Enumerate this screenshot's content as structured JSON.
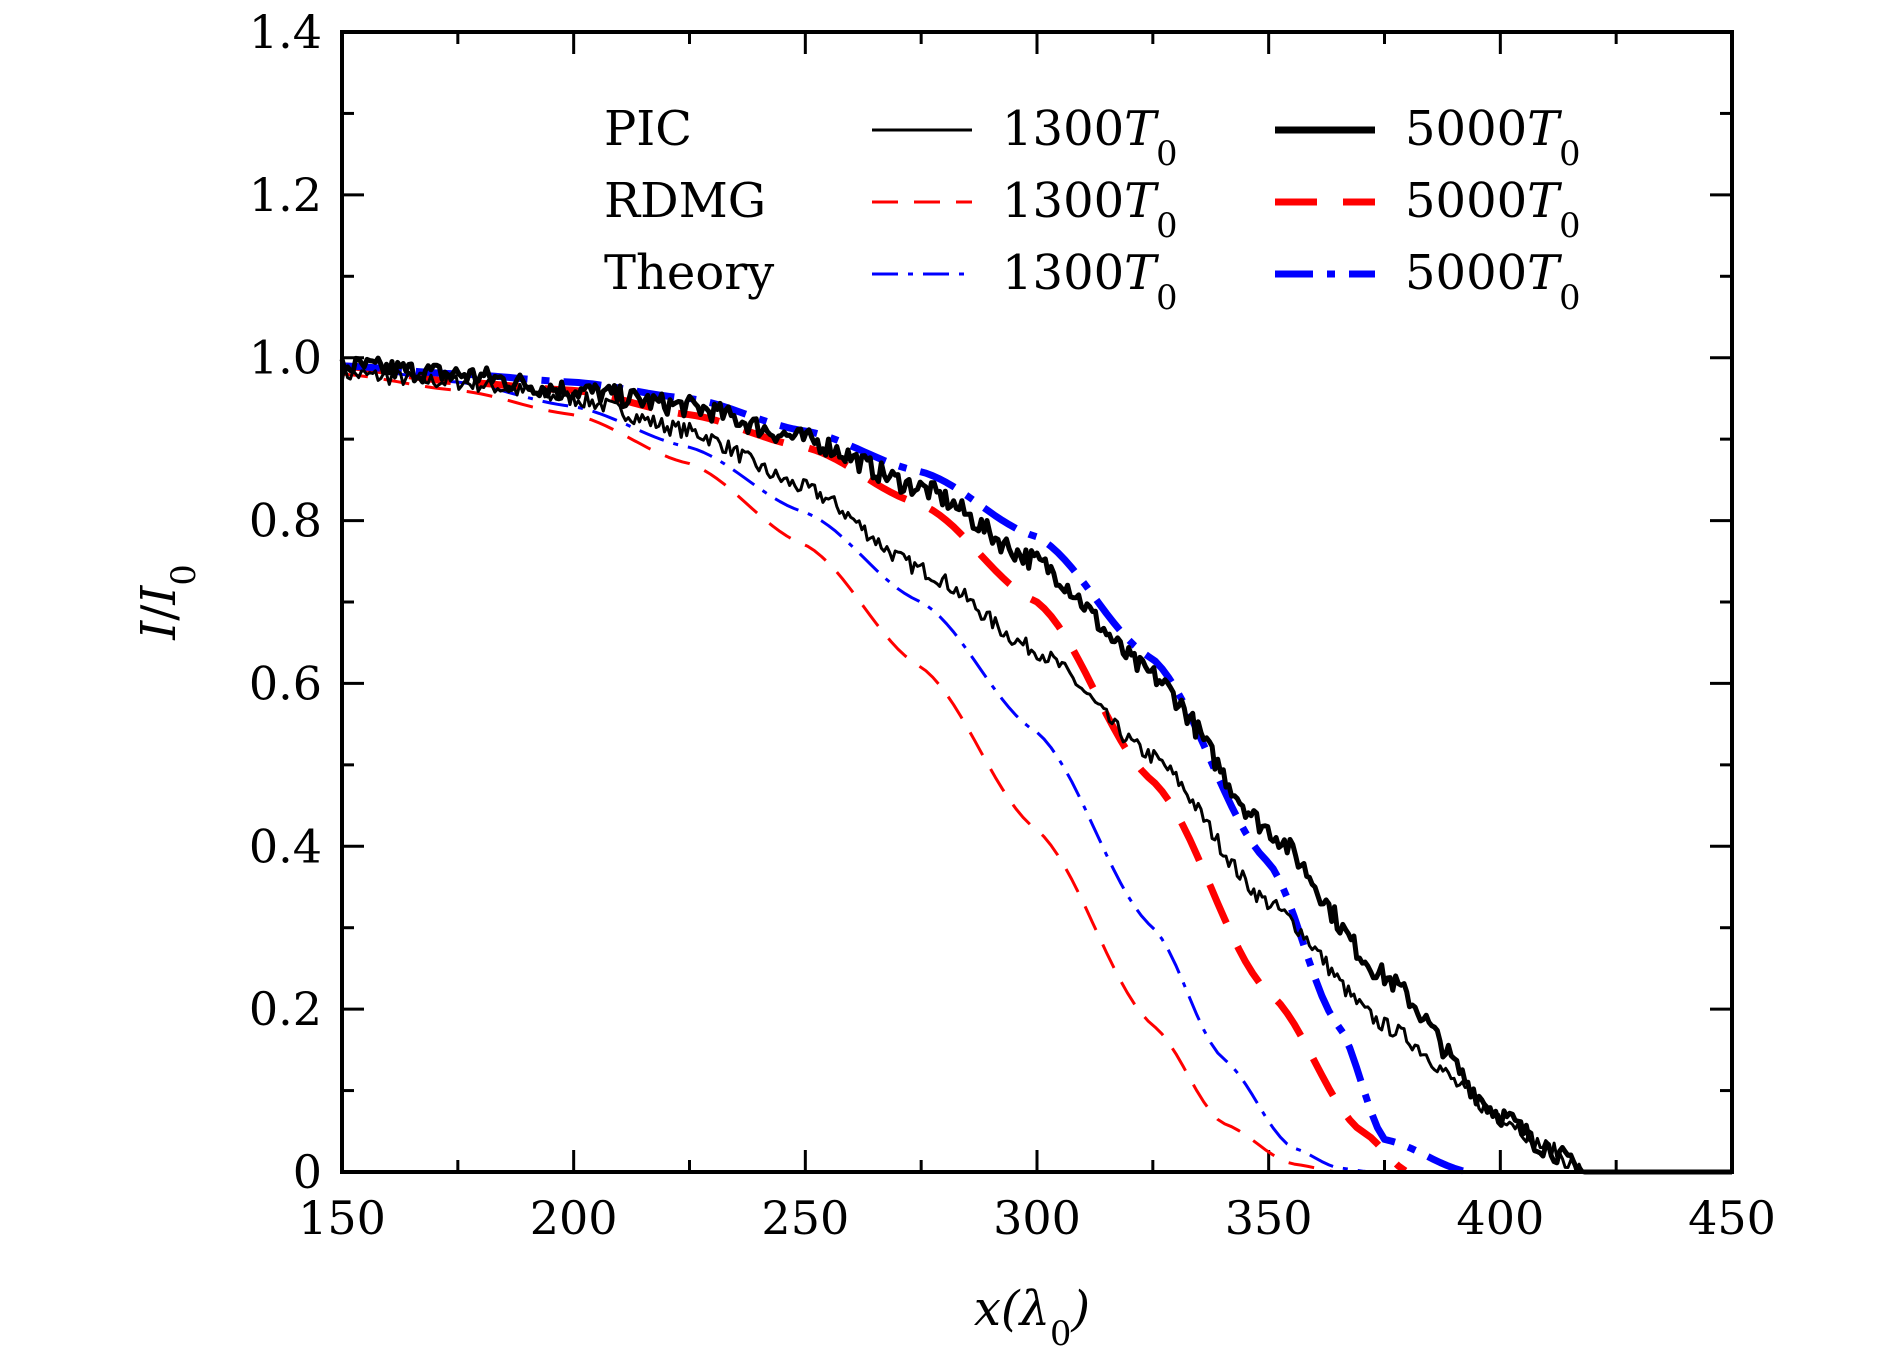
{
  "chart_data": {
    "type": "line",
    "title": "",
    "xlabel": "x(λ0)",
    "ylabel": "I/I0",
    "xlim": [
      150,
      450
    ],
    "ylim": [
      0,
      1.4
    ],
    "x_ticks": [
      "150",
      "200",
      "250",
      "300",
      "350",
      "400",
      "450"
    ],
    "y_ticks": [
      "0",
      "0.2",
      "0.4",
      "0.6",
      "0.8",
      "1.0",
      "1.2",
      "1.4"
    ],
    "legend": {
      "placement": "top",
      "row_labels": [
        "PIC",
        "RDMG",
        "Theory"
      ],
      "column_labels": [
        "1300T0",
        "5000T0"
      ]
    },
    "series": [
      {
        "name": "PIC 1300T0",
        "color": "#000000",
        "style": "solid",
        "width": "thin",
        "noisy": true,
        "x": [
          150,
          175,
          200,
          225,
          250,
          275,
          300,
          325,
          350,
          375,
          400,
          410,
          418,
          450
        ],
        "y": [
          0.98,
          0.97,
          0.95,
          0.91,
          0.84,
          0.74,
          0.64,
          0.51,
          0.33,
          0.18,
          0.07,
          0.03,
          0.0,
          0.0
        ]
      },
      {
        "name": "PIC 5000T0",
        "color": "#000000",
        "style": "solid",
        "width": "thick",
        "noisy": true,
        "x": [
          150,
          175,
          200,
          225,
          250,
          275,
          300,
          325,
          350,
          375,
          400,
          410,
          418,
          450
        ],
        "y": [
          0.99,
          0.98,
          0.96,
          0.94,
          0.9,
          0.84,
          0.75,
          0.61,
          0.42,
          0.24,
          0.07,
          0.03,
          0.0,
          0.0
        ]
      },
      {
        "name": "RDMG 1300T0",
        "color": "#ff0000",
        "style": "dashed",
        "width": "thin",
        "noisy": false,
        "x": [
          150,
          175,
          200,
          225,
          250,
          275,
          300,
          325,
          340,
          355,
          365
        ],
        "y": [
          0.98,
          0.96,
          0.93,
          0.87,
          0.77,
          0.62,
          0.42,
          0.18,
          0.06,
          0.01,
          0.0
        ]
      },
      {
        "name": "RDMG 5000T0",
        "color": "#ff0000",
        "style": "dashed",
        "width": "thick",
        "noisy": false,
        "x": [
          150,
          175,
          200,
          225,
          250,
          275,
          300,
          325,
          350,
          370,
          380
        ],
        "y": [
          0.99,
          0.97,
          0.96,
          0.93,
          0.89,
          0.82,
          0.7,
          0.48,
          0.22,
          0.05,
          0.0
        ]
      },
      {
        "name": "Theory 1300T0",
        "color": "#0000ff",
        "style": "dashdot",
        "width": "thin",
        "noisy": false,
        "x": [
          150,
          175,
          200,
          225,
          250,
          275,
          300,
          325,
          340,
          355,
          365,
          372
        ],
        "y": [
          0.99,
          0.97,
          0.94,
          0.89,
          0.81,
          0.7,
          0.54,
          0.3,
          0.14,
          0.03,
          0.005,
          0.0
        ]
      },
      {
        "name": "Theory 5000T0",
        "color": "#0000ff",
        "style": "dashdot",
        "width": "thick",
        "noisy": false,
        "x": [
          150,
          175,
          200,
          225,
          250,
          275,
          300,
          325,
          350,
          365,
          375,
          393
        ],
        "y": [
          0.99,
          0.98,
          0.97,
          0.95,
          0.91,
          0.86,
          0.78,
          0.63,
          0.38,
          0.18,
          0.04,
          0.0
        ]
      }
    ]
  }
}
